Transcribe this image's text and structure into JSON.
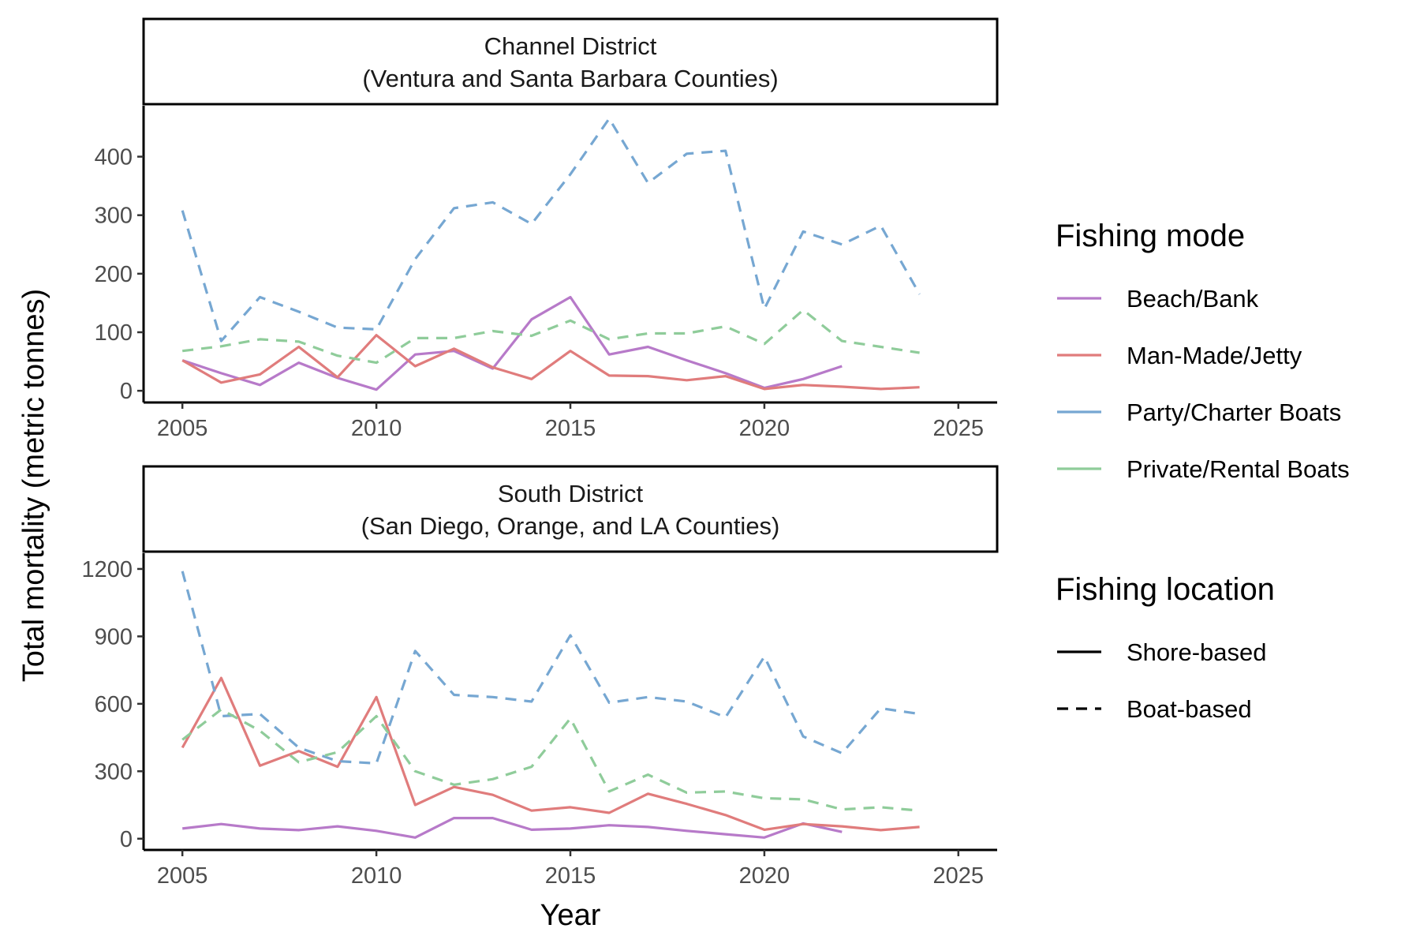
{
  "chart_data": {
    "type": "line",
    "xlabel": "Year",
    "ylabel": "Total mortality (metric tonnes)",
    "x_ticks": [
      2005,
      2010,
      2015,
      2020,
      2025
    ],
    "xlim": [
      2004,
      2026
    ],
    "colors": {
      "Beach/Bank": "#b77ac9",
      "Man-Made/Jetty": "#e07c7c",
      "Party/Charter Boats": "#76a7d2",
      "Private/Rental Boats": "#8fcc9a"
    },
    "legend_mode": {
      "title": "Fishing mode",
      "items": [
        "Beach/Bank",
        "Man-Made/Jetty",
        "Party/Charter Boats",
        "Private/Rental Boats"
      ]
    },
    "legend_location": {
      "title": "Fishing location",
      "items": [
        {
          "label": "Shore-based",
          "linetype": "solid"
        },
        {
          "label": "Boat-based",
          "linetype": "dashed"
        }
      ]
    },
    "panels": [
      {
        "strip_line1": "Channel District",
        "strip_line2": "(Ventura and Santa Barbara Counties)",
        "ylim": [
          -20,
          487
        ],
        "y_ticks": [
          0,
          100,
          200,
          300,
          400
        ],
        "series": [
          {
            "name": "Beach/Bank",
            "linetype": "solid",
            "x": [
              2005,
              2006,
              2007,
              2008,
              2009,
              2010,
              2011,
              2012,
              2013,
              2014,
              2015,
              2016,
              2017,
              2018,
              2019,
              2020,
              2021,
              2022
            ],
            "y": [
              52,
              30,
              10,
              48,
              22,
              2,
              62,
              68,
              38,
              122,
              160,
              62,
              75,
              52,
              30,
              5,
              20,
              42
            ]
          },
          {
            "name": "Man-Made/Jetty",
            "linetype": "solid",
            "x": [
              2005,
              2006,
              2007,
              2008,
              2009,
              2010,
              2011,
              2012,
              2013,
              2014,
              2015,
              2016,
              2017,
              2018,
              2019,
              2020,
              2021,
              2022,
              2023,
              2024
            ],
            "y": [
              52,
              14,
              28,
              75,
              23,
              95,
              42,
              72,
              40,
              20,
              68,
              26,
              25,
              18,
              25,
              3,
              10,
              7,
              3,
              6
            ]
          },
          {
            "name": "Party/Charter Boats",
            "linetype": "dashed",
            "x": [
              2005,
              2006,
              2007,
              2008,
              2009,
              2010,
              2011,
              2012,
              2013,
              2014,
              2015,
              2016,
              2017,
              2018,
              2019,
              2020,
              2021,
              2022,
              2023,
              2024
            ],
            "y": [
              308,
              85,
              160,
              135,
              108,
              105,
              225,
              312,
              322,
              285,
              370,
              465,
              355,
              405,
              410,
              140,
              272,
              250,
              282,
              165
            ]
          },
          {
            "name": "Private/Rental Boats",
            "linetype": "dashed",
            "x": [
              2005,
              2006,
              2007,
              2008,
              2009,
              2010,
              2011,
              2012,
              2013,
              2014,
              2015,
              2016,
              2017,
              2018,
              2019,
              2020,
              2021,
              2022,
              2023,
              2024
            ],
            "y": [
              68,
              76,
              88,
              84,
              60,
              48,
              90,
              90,
              102,
              94,
              120,
              88,
              98,
              98,
              110,
              80,
              138,
              85,
              75,
              65
            ]
          }
        ]
      },
      {
        "strip_line1": "South District",
        "strip_line2": "(San Diego, Orange, and LA Counties)",
        "ylim": [
          -50,
          1270
        ],
        "y_ticks": [
          0,
          300,
          600,
          900,
          1200
        ],
        "series": [
          {
            "name": "Beach/Bank",
            "linetype": "solid",
            "x": [
              2005,
              2006,
              2007,
              2008,
              2009,
              2010,
              2011,
              2012,
              2013,
              2014,
              2015,
              2016,
              2017,
              2018,
              2019,
              2020,
              2021,
              2022
            ],
            "y": [
              45,
              65,
              45,
              38,
              55,
              35,
              5,
              92,
              92,
              40,
              45,
              60,
              52,
              35,
              20,
              5,
              68,
              30
            ]
          },
          {
            "name": "Man-Made/Jetty",
            "linetype": "solid",
            "x": [
              2005,
              2006,
              2007,
              2008,
              2009,
              2010,
              2011,
              2012,
              2013,
              2014,
              2015,
              2016,
              2017,
              2018,
              2019,
              2020,
              2021,
              2022,
              2023,
              2024
            ],
            "y": [
              405,
              715,
              325,
              390,
              320,
              630,
              150,
              230,
              195,
              125,
              140,
              115,
              200,
              155,
              105,
              40,
              65,
              55,
              38,
              52
            ]
          },
          {
            "name": "Party/Charter Boats",
            "linetype": "dashed",
            "x": [
              2005,
              2006,
              2007,
              2008,
              2009,
              2010,
              2011,
              2012,
              2013,
              2014,
              2015,
              2016,
              2017,
              2018,
              2019,
              2020,
              2021,
              2022,
              2023,
              2024
            ],
            "y": [
              1190,
              545,
              555,
              405,
              345,
              335,
              835,
              640,
              630,
              610,
              905,
              605,
              630,
              610,
              540,
              810,
              455,
              380,
              580,
              555
            ]
          },
          {
            "name": "Private/Rental Boats",
            "linetype": "dashed",
            "x": [
              2005,
              2006,
              2007,
              2008,
              2009,
              2010,
              2011,
              2012,
              2013,
              2014,
              2015,
              2016,
              2017,
              2018,
              2019,
              2020,
              2021,
              2022,
              2023,
              2024
            ],
            "y": [
              440,
              575,
              480,
              340,
              385,
              545,
              300,
              240,
              265,
              320,
              535,
              210,
              285,
              205,
              210,
              180,
              175,
              130,
              140,
              125
            ]
          }
        ]
      }
    ]
  }
}
